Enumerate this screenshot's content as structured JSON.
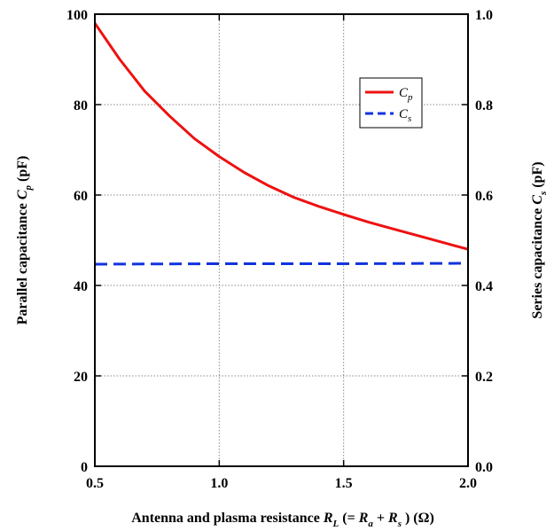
{
  "chart_data": {
    "type": "line",
    "x_axis": {
      "label_parts": [
        "Antenna and plasma resistance ",
        "R",
        "L",
        " (= ",
        "R",
        "a",
        " + ",
        "R",
        "s",
        " )  (Ω)"
      ],
      "range": [
        0.5,
        2.0
      ],
      "ticks": [
        0.5,
        1.0,
        1.5,
        2.0
      ],
      "tick_labels": [
        "0.5",
        "1.0",
        "1.5",
        "2.0"
      ]
    },
    "y_axis_left": {
      "label_parts": [
        "Parallel capacitance ",
        "C",
        "p",
        " (pF)"
      ],
      "range": [
        0,
        100
      ],
      "ticks": [
        0,
        20,
        40,
        60,
        80,
        100
      ],
      "tick_labels": [
        "0",
        "20",
        "40",
        "60",
        "80",
        "100"
      ]
    },
    "y_axis_right": {
      "label_parts": [
        "Series capacitance ",
        "C",
        "s",
        " (pF)"
      ],
      "range": [
        0.0,
        1.0
      ],
      "ticks": [
        0.0,
        0.2,
        0.4,
        0.6,
        0.8,
        1.0
      ],
      "tick_labels": [
        "0.0",
        "0.2",
        "0.4",
        "0.6",
        "0.8",
        "1.0"
      ]
    },
    "grid": true,
    "legend_position": "top-right",
    "series": [
      {
        "name_main": "C",
        "name_sub": "p",
        "axis": "left",
        "color": "#ee1111",
        "style": "solid",
        "x": [
          0.5,
          0.6,
          0.7,
          0.8,
          0.9,
          1.0,
          1.1,
          1.2,
          1.3,
          1.4,
          1.5,
          1.6,
          1.7,
          1.8,
          1.9,
          2.0
        ],
        "y": [
          98,
          90,
          83,
          77.5,
          72.5,
          68.5,
          65,
          62,
          59.5,
          57.5,
          55.7,
          54,
          52.5,
          51,
          49.5,
          48
        ]
      },
      {
        "name_main": "C",
        "name_sub": "s",
        "axis": "right",
        "color": "#1133dd",
        "style": "dashed",
        "x": [
          0.5,
          1.0,
          1.5,
          2.0
        ],
        "y": [
          0.447,
          0.448,
          0.448,
          0.449
        ]
      }
    ]
  }
}
